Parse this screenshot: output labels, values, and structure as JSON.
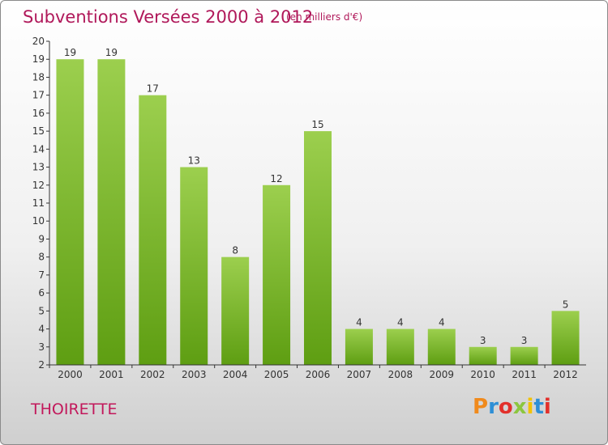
{
  "header": {
    "title": "Subventions Versées 2000 à 2012",
    "unit_note": "(en milliers d'€)"
  },
  "footer": {
    "commune": "THOIRETTE",
    "logo": "Proxiti",
    "logo_colors": [
      "#f08a1c",
      "#2e8fd6",
      "#e2302b",
      "#8cc63f",
      "#f2c200",
      "#2e8fd6",
      "#e2302b"
    ]
  },
  "colors": {
    "title": "#b0185a",
    "bar_top": "#9ccf4e",
    "bar_bottom": "#5e9e12",
    "axis": "#333333"
  },
  "chart_data": {
    "type": "bar",
    "title": "Subventions Versées 2000 à 2012",
    "subtitle": "(en milliers d'€)",
    "categories": [
      "2000",
      "2001",
      "2002",
      "2003",
      "2004",
      "2005",
      "2006",
      "2007",
      "2008",
      "2009",
      "2010",
      "2011",
      "2012"
    ],
    "values": [
      19,
      19,
      17,
      13,
      8,
      12,
      15,
      4,
      4,
      4,
      3,
      3,
      5
    ],
    "ylim": [
      2,
      20
    ],
    "yticks": [
      2,
      3,
      4,
      5,
      6,
      7,
      8,
      9,
      10,
      11,
      12,
      13,
      14,
      15,
      16,
      17,
      18,
      19,
      20
    ],
    "grid": false,
    "legend": "none",
    "data_labels": true
  }
}
